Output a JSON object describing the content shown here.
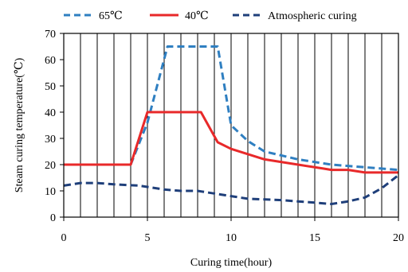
{
  "chart_data": {
    "type": "line",
    "xlabel": "Curing time(hour)",
    "ylabel": "Steam curing temperature(℃)",
    "xlim": [
      0,
      20
    ],
    "ylim": [
      0,
      70
    ],
    "x_ticks": [
      0,
      5,
      10,
      15,
      20
    ],
    "y_ticks": [
      0,
      10,
      20,
      30,
      40,
      50,
      60,
      70
    ],
    "x_tick_labels": [
      "0",
      "5",
      "10",
      "15",
      "20"
    ],
    "y_tick_labels": [
      "0",
      "10",
      "20",
      "30",
      "40",
      "50",
      "60",
      "70"
    ],
    "grid": "vertical lines every 1 hour",
    "legend": "top",
    "series": [
      {
        "name": "65℃",
        "color": "#2f7fc1",
        "style": "dashed",
        "points": [
          [
            0,
            20
          ],
          [
            4,
            20
          ],
          [
            5,
            36
          ],
          [
            6.2,
            65
          ],
          [
            7,
            65
          ],
          [
            8,
            65
          ],
          [
            9.2,
            65
          ],
          [
            10,
            35
          ],
          [
            11,
            29
          ],
          [
            12,
            25
          ],
          [
            14,
            22
          ],
          [
            16,
            20
          ],
          [
            18,
            19
          ],
          [
            20,
            18
          ]
        ]
      },
      {
        "name": "40℃",
        "color": "#e8292a",
        "style": "solid",
        "points": [
          [
            0,
            20
          ],
          [
            4,
            20
          ],
          [
            5,
            40
          ],
          [
            6,
            40
          ],
          [
            7,
            40
          ],
          [
            8.2,
            40
          ],
          [
            9.2,
            28.5
          ],
          [
            10,
            26
          ],
          [
            11,
            24
          ],
          [
            12,
            22
          ],
          [
            14,
            20
          ],
          [
            15.5,
            18.5
          ],
          [
            16,
            18
          ],
          [
            17,
            18
          ],
          [
            18,
            17
          ],
          [
            20,
            17
          ]
        ]
      },
      {
        "name": "Atmospheric curing",
        "color": "#1f3f7a",
        "style": "dashed",
        "points": [
          [
            0,
            12
          ],
          [
            1,
            13
          ],
          [
            2,
            13
          ],
          [
            3,
            12.5
          ],
          [
            4.5,
            12
          ],
          [
            6,
            10.5
          ],
          [
            7,
            10
          ],
          [
            8,
            10
          ],
          [
            9,
            9
          ],
          [
            10,
            8
          ],
          [
            11,
            7
          ],
          [
            13,
            6.5
          ],
          [
            14,
            6
          ],
          [
            15,
            5.5
          ],
          [
            16,
            5
          ],
          [
            17,
            6
          ],
          [
            18,
            7.5
          ],
          [
            19,
            11
          ],
          [
            20,
            16
          ]
        ]
      }
    ]
  }
}
